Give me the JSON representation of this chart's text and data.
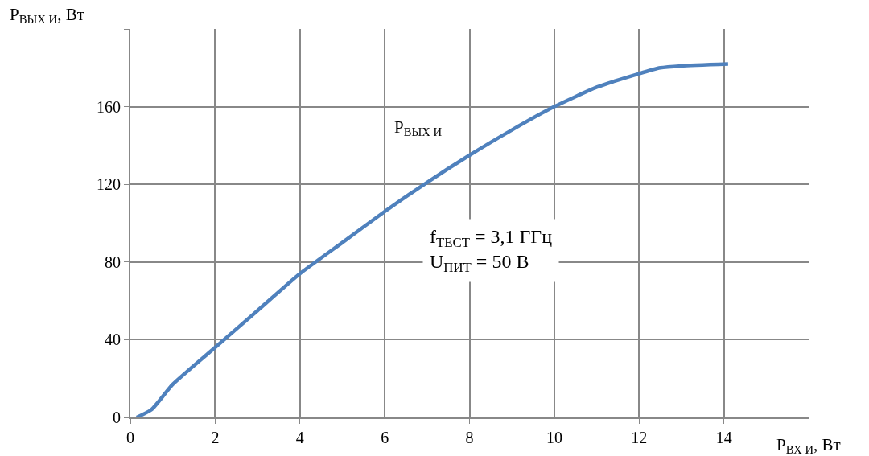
{
  "chart_data": {
    "type": "line",
    "ylabel": "P$_{ВЫХ И}$, Вт",
    "xlabel": "P$_{ВХ И}$, Вт",
    "annotations": [
      "f$_{ТЕСТ}$ = 3,1 ГГц",
      "U$_{ПИТ}$ = 50 В"
    ],
    "x": [
      0.15,
      0.5,
      1,
      2,
      3,
      4,
      5,
      6,
      7,
      8,
      9,
      10,
      11,
      12,
      12.5,
      13,
      14.1
    ],
    "series": [
      {
        "name": "P$_{ВЫХ И}$",
        "color": "#4f81bd",
        "values": [
          0,
          4,
          17,
          36,
          55,
          74,
          90,
          106,
          121,
          135,
          148,
          160,
          170,
          177,
          180,
          181,
          182
        ]
      }
    ],
    "xlim": [
      0,
      16
    ],
    "xticks": [
      0,
      2,
      4,
      6,
      8,
      10,
      12,
      14,
      {
        "value": 16,
        "label": null
      }
    ],
    "ylim": [
      0,
      200
    ],
    "yticks": [
      0,
      40,
      80,
      120,
      160,
      {
        "value": 200,
        "label": null
      }
    ],
    "grid": true,
    "legend": false,
    "marker": "none",
    "line_style": "solid"
  }
}
